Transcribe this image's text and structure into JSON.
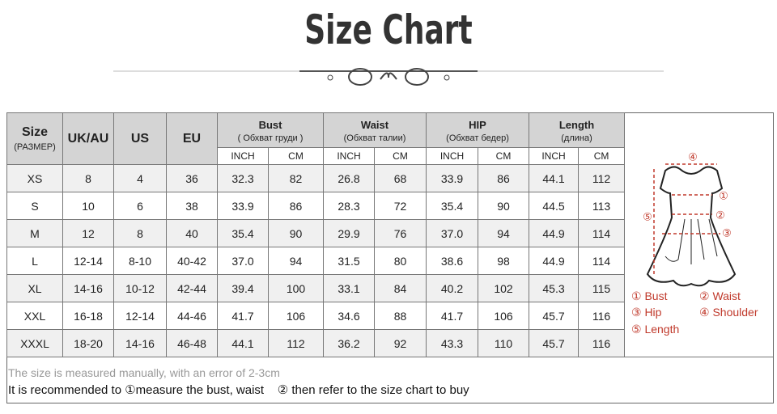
{
  "header": {
    "title": "Size Chart"
  },
  "table": {
    "header": [
      {
        "label": "Size",
        "sub": "(РАЗМЕР)"
      },
      {
        "label": "UK/AU"
      },
      {
        "label": "US"
      },
      {
        "label": "EU"
      }
    ],
    "groups": [
      {
        "label": "Bust",
        "sub": "( Обхват груди )",
        "units": [
          "INCH",
          "CM"
        ]
      },
      {
        "label": "Waist",
        "sub": "(Обхват талии)",
        "units": [
          "INCH",
          "CM"
        ]
      },
      {
        "label": "HIP",
        "sub": "(Обхват бедер)",
        "units": [
          "INCH",
          "CM"
        ]
      },
      {
        "label": "Length",
        "sub": "(длина)",
        "units": [
          "INCH",
          "CM"
        ]
      }
    ],
    "rows": [
      [
        "XS",
        "8",
        "4",
        "36",
        "32.3",
        "82",
        "26.8",
        "68",
        "33.9",
        "86",
        "44.1",
        "112"
      ],
      [
        "S",
        "10",
        "6",
        "38",
        "33.9",
        "86",
        "28.3",
        "72",
        "35.4",
        "90",
        "44.5",
        "113"
      ],
      [
        "M",
        "12",
        "8",
        "40",
        "35.4",
        "90",
        "29.9",
        "76",
        "37.0",
        "94",
        "44.9",
        "114"
      ],
      [
        "L",
        "12-14",
        "8-10",
        "40-42",
        "37.0",
        "94",
        "31.5",
        "80",
        "38.6",
        "98",
        "44.9",
        "114"
      ],
      [
        "XL",
        "14-16",
        "10-12",
        "42-44",
        "39.4",
        "100",
        "33.1",
        "84",
        "40.2",
        "102",
        "45.3",
        "115"
      ],
      [
        "XXL",
        "16-18",
        "12-14",
        "44-46",
        "41.7",
        "106",
        "34.6",
        "88",
        "41.7",
        "106",
        "45.7",
        "116"
      ],
      [
        "XXXL",
        "18-20",
        "14-16",
        "46-48",
        "44.1",
        "112",
        "36.2",
        "92",
        "43.3",
        "110",
        "45.7",
        "116"
      ]
    ]
  },
  "diagram": {
    "markers": [
      "④",
      "①",
      "②",
      "③",
      "⑤"
    ],
    "legend": [
      "① Bust",
      "② Waist",
      "③ Hip",
      "④ Shoulder",
      "⑤ Length"
    ]
  },
  "notes": [
    "The size is measured manually, with an error of 2-3cm",
    "It is recommended to ①measure the bust, waist    ② then refer to the size chart to buy"
  ]
}
